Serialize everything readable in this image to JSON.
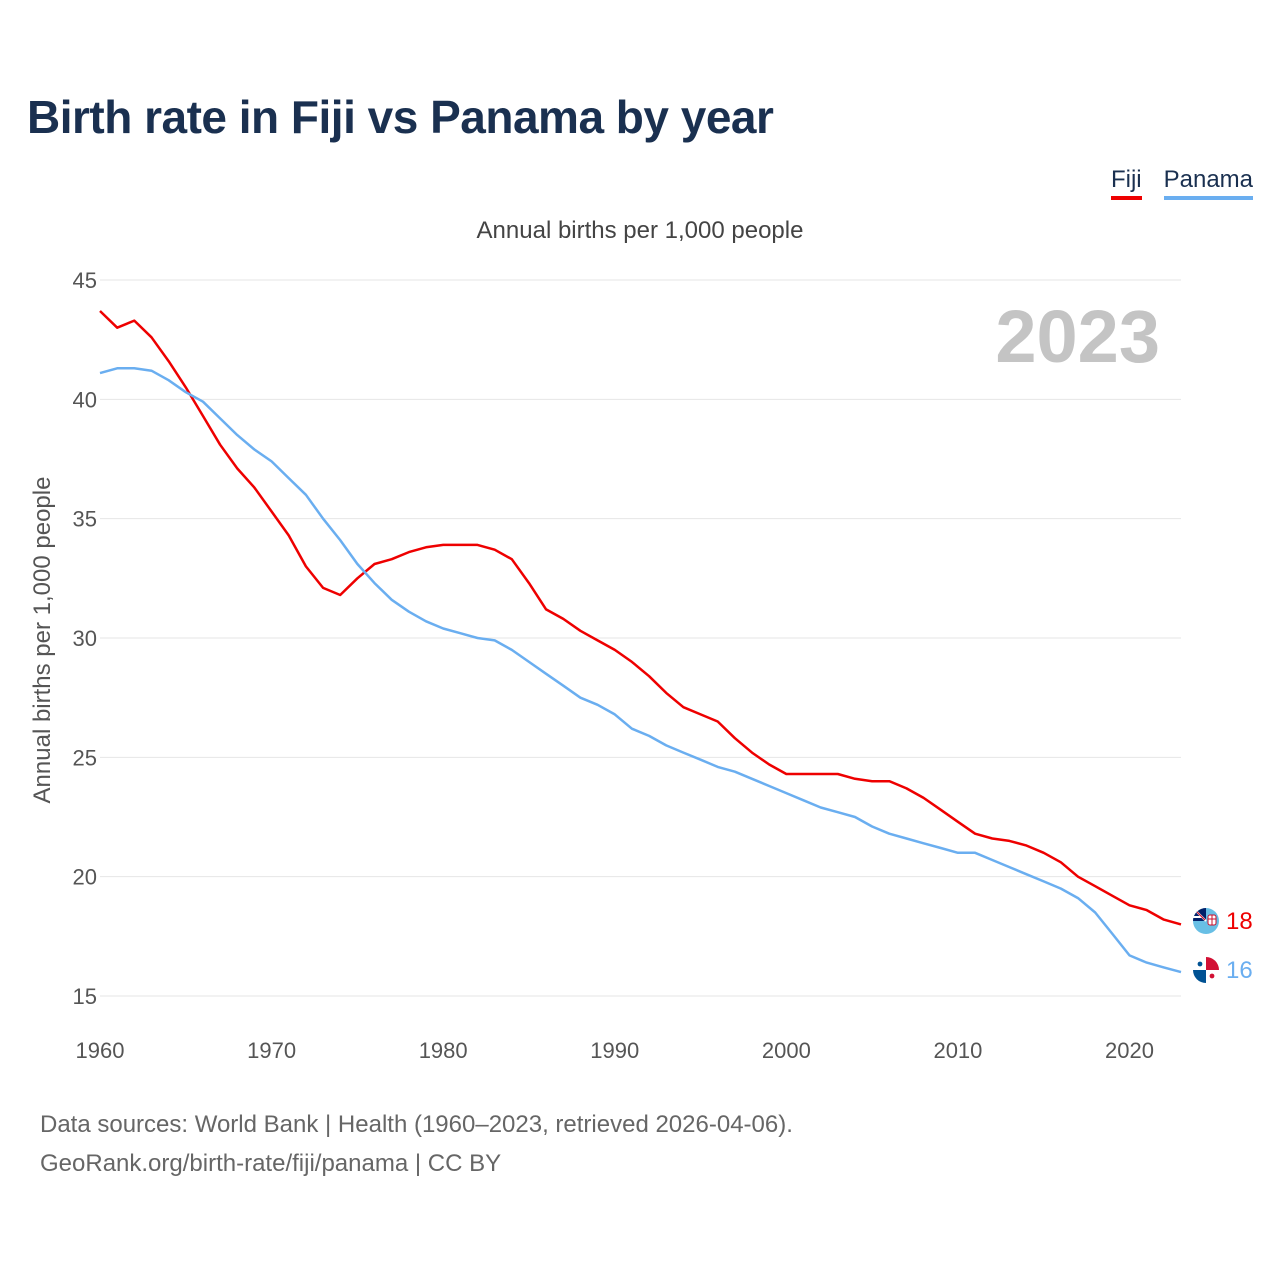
{
  "title": "Birth rate in Fiji vs Panama by year",
  "subtitle": "Annual births per 1,000 people",
  "footer": {
    "line1": "Data sources: World Bank | Health (1960–2023, retrieved 2026-04-06).",
    "line2": "GeoRank.org/birth-rate/fiji/panama | CC BY"
  },
  "colors": {
    "fiji": "#ee0000",
    "panama": "#6aaef0",
    "grid": "#e6e6e6"
  },
  "chart_data": {
    "type": "line",
    "title": "Birth rate in Fiji vs Panama by year",
    "ylabel": "Annual births per 1,000 people",
    "xlabel": "",
    "year_marker": "2023",
    "xlim": [
      1960,
      2023
    ],
    "ylim": [
      15,
      45
    ],
    "x_ticks": [
      1960,
      1970,
      1980,
      1990,
      2000,
      2010,
      2020
    ],
    "y_ticks": [
      15,
      20,
      25,
      30,
      35,
      40,
      45
    ],
    "x": [
      1960,
      1961,
      1962,
      1963,
      1964,
      1965,
      1966,
      1967,
      1968,
      1969,
      1970,
      1971,
      1972,
      1973,
      1974,
      1975,
      1976,
      1977,
      1978,
      1979,
      1980,
      1981,
      1982,
      1983,
      1984,
      1985,
      1986,
      1987,
      1988,
      1989,
      1990,
      1991,
      1992,
      1993,
      1994,
      1995,
      1996,
      1997,
      1998,
      1999,
      2000,
      2001,
      2002,
      2003,
      2004,
      2005,
      2006,
      2007,
      2008,
      2009,
      2010,
      2011,
      2012,
      2013,
      2014,
      2015,
      2016,
      2017,
      2018,
      2019,
      2020,
      2021,
      2022,
      2023
    ],
    "series": [
      {
        "name": "Fiji",
        "color": "#ee0000",
        "end_label": "18",
        "values": [
          43.7,
          43.0,
          43.3,
          42.6,
          41.6,
          40.5,
          39.3,
          38.1,
          37.1,
          36.3,
          35.3,
          34.3,
          33.0,
          32.1,
          31.8,
          32.5,
          33.1,
          33.3,
          33.6,
          33.8,
          33.9,
          33.9,
          33.9,
          33.7,
          33.3,
          32.3,
          31.2,
          30.8,
          30.3,
          29.9,
          29.5,
          29.0,
          28.4,
          27.7,
          27.1,
          26.8,
          26.5,
          25.8,
          25.2,
          24.7,
          24.3,
          24.3,
          24.3,
          24.3,
          24.1,
          24.0,
          24.0,
          23.7,
          23.3,
          22.8,
          22.3,
          21.8,
          21.6,
          21.5,
          21.3,
          21.0,
          20.6,
          20.0,
          19.6,
          19.2,
          18.8,
          18.6,
          18.2,
          18.0
        ]
      },
      {
        "name": "Panama",
        "color": "#6aaef0",
        "end_label": "16",
        "values": [
          41.1,
          41.3,
          41.3,
          41.2,
          40.8,
          40.3,
          39.9,
          39.2,
          38.5,
          37.9,
          37.4,
          36.7,
          36.0,
          35.0,
          34.1,
          33.1,
          32.3,
          31.6,
          31.1,
          30.7,
          30.4,
          30.2,
          30.0,
          29.9,
          29.5,
          29.0,
          28.5,
          28.0,
          27.5,
          27.2,
          26.8,
          26.2,
          25.9,
          25.5,
          25.2,
          24.9,
          24.6,
          24.4,
          24.1,
          23.8,
          23.5,
          23.2,
          22.9,
          22.7,
          22.5,
          22.1,
          21.8,
          21.6,
          21.4,
          21.2,
          21.0,
          21.0,
          20.7,
          20.4,
          20.1,
          19.8,
          19.5,
          19.1,
          18.5,
          17.6,
          16.7,
          16.4,
          16.2,
          16.0
        ]
      }
    ]
  }
}
